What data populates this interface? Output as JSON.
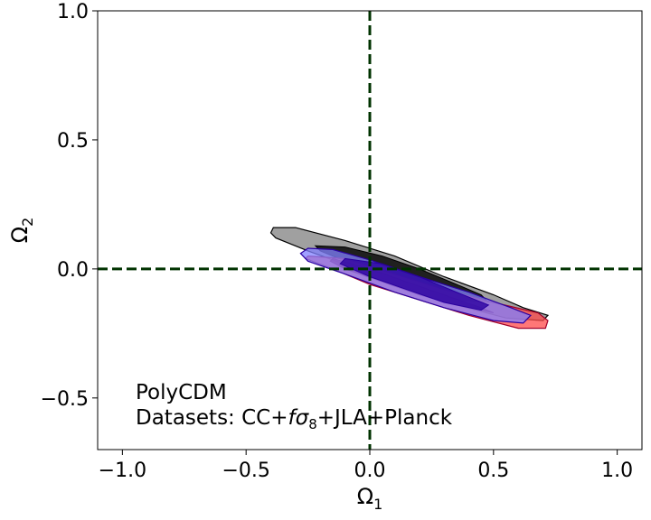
{
  "chart_data": {
    "type": "contour",
    "xlabel_base": "Ω",
    "xlabel_sub": "1",
    "ylabel_base": "Ω",
    "ylabel_sub": "2",
    "xlim": [
      -1.1,
      1.1
    ],
    "ylim": [
      -0.7,
      1.0
    ],
    "xticks": [
      -1.0,
      -0.5,
      0.0,
      0.5,
      1.0
    ],
    "yticks": [
      -0.5,
      0.0,
      0.5,
      1.0
    ],
    "xtick_labels": [
      "−1.0",
      "−0.5",
      "0.0",
      "0.5",
      "1.0"
    ],
    "ytick_labels": [
      "−0.5",
      "0.0",
      "0.5",
      "1.0"
    ],
    "reference_lines": {
      "x": 0.0,
      "y": 0.0,
      "color": "#003300",
      "style": "dashed"
    },
    "annotation": {
      "line1": "PolyCDM",
      "line2_prefix": "Datasets: CC+",
      "line2_f": "f",
      "line2_sigma": "σ",
      "line2_sub": "8",
      "line2_suffix": "+JLA+Planck"
    },
    "contours": [
      {
        "color": "#808080",
        "inner_color": "#000000",
        "outer": [
          [
            -0.39,
            0.16
          ],
          [
            -0.3,
            0.16
          ],
          [
            -0.1,
            0.11
          ],
          [
            0.1,
            0.05
          ],
          [
            0.3,
            -0.03
          ],
          [
            0.5,
            -0.1
          ],
          [
            0.62,
            -0.15
          ],
          [
            0.72,
            -0.18
          ],
          [
            0.7,
            -0.2
          ],
          [
            0.55,
            -0.19
          ],
          [
            0.35,
            -0.14
          ],
          [
            0.15,
            -0.07
          ],
          [
            -0.05,
            0.0
          ],
          [
            -0.25,
            0.07
          ],
          [
            -0.38,
            0.12
          ],
          [
            -0.4,
            0.14
          ]
        ],
        "inner": [
          [
            -0.22,
            0.09
          ],
          [
            -0.1,
            0.085
          ],
          [
            0.05,
            0.05
          ],
          [
            0.2,
            0.0
          ],
          [
            0.35,
            -0.06
          ],
          [
            0.45,
            -0.1
          ],
          [
            0.48,
            -0.13
          ],
          [
            0.35,
            -0.12
          ],
          [
            0.2,
            -0.07
          ],
          [
            0.05,
            -0.02
          ],
          [
            -0.1,
            0.03
          ],
          [
            -0.2,
            0.07
          ]
        ]
      },
      {
        "color": "#ff4a4a",
        "inner_color": "#a0002a",
        "outer": [
          [
            -0.25,
            0.05
          ],
          [
            -0.1,
            0.04
          ],
          [
            0.1,
            -0.02
          ],
          [
            0.3,
            -0.08
          ],
          [
            0.5,
            -0.13
          ],
          [
            0.68,
            -0.17
          ],
          [
            0.72,
            -0.2
          ],
          [
            0.71,
            -0.23
          ],
          [
            0.6,
            -0.23
          ],
          [
            0.4,
            -0.18
          ],
          [
            0.2,
            -0.12
          ],
          [
            0.0,
            -0.06
          ],
          [
            -0.15,
            0.0
          ],
          [
            -0.26,
            0.04
          ]
        ],
        "inner": [
          [
            -0.15,
            0.04
          ],
          [
            0.0,
            0.0
          ],
          [
            0.15,
            -0.05
          ],
          [
            0.3,
            -0.1
          ],
          [
            0.45,
            -0.15
          ],
          [
            0.5,
            -0.17
          ],
          [
            0.35,
            -0.14
          ],
          [
            0.2,
            -0.1
          ],
          [
            0.05,
            -0.05
          ],
          [
            -0.1,
            0.0
          ],
          [
            -0.16,
            0.03
          ]
        ]
      },
      {
        "color": "#8080ff",
        "inner_color": "#2a00a0",
        "outer": [
          [
            -0.28,
            0.06
          ],
          [
            -0.25,
            0.08
          ],
          [
            -0.15,
            0.075
          ],
          [
            0.0,
            0.035
          ],
          [
            0.2,
            -0.03
          ],
          [
            0.4,
            -0.09
          ],
          [
            0.57,
            -0.15
          ],
          [
            0.65,
            -0.18
          ],
          [
            0.62,
            -0.21
          ],
          [
            0.5,
            -0.2
          ],
          [
            0.3,
            -0.15
          ],
          [
            0.1,
            -0.09
          ],
          [
            -0.1,
            -0.02
          ],
          [
            -0.25,
            0.03
          ]
        ],
        "inner": [
          [
            -0.1,
            0.04
          ],
          [
            0.05,
            0.02
          ],
          [
            0.2,
            -0.03
          ],
          [
            0.35,
            -0.09
          ],
          [
            0.48,
            -0.14
          ],
          [
            0.45,
            -0.16
          ],
          [
            0.3,
            -0.13
          ],
          [
            0.15,
            -0.08
          ],
          [
            0.0,
            -0.03
          ],
          [
            -0.12,
            0.02
          ]
        ]
      }
    ]
  }
}
